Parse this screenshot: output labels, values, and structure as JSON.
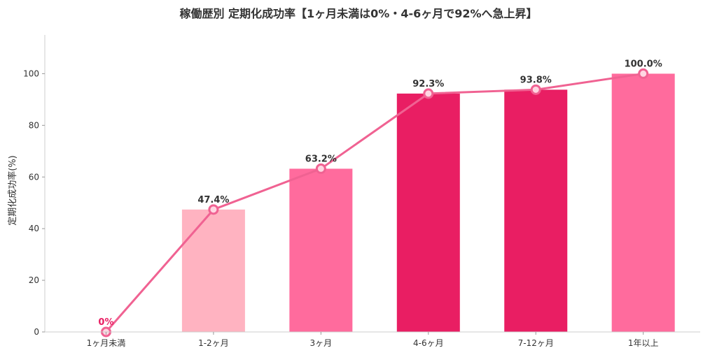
{
  "chart_data": {
    "type": "bar",
    "title": "稼働歴別 定期化成功率【1ヶ月未満は0%・4-6ヶ月で92%へ急上昇】",
    "xlabel": "",
    "ylabel": "定期化成功率(%)",
    "categories": [
      "1ヶ月未満",
      "1-2ヶ月",
      "3ヶ月",
      "4-6ヶ月",
      "7-12ヶ月",
      "1年以上"
    ],
    "values": [
      0,
      47.4,
      63.2,
      92.3,
      93.8,
      100.0
    ],
    "value_labels": [
      "0%",
      "47.4%",
      "63.2%",
      "92.3%",
      "93.8%",
      "100.0%"
    ],
    "bar_colors": [
      "#FFB3C1",
      "#FFB3C1",
      "#FF6B9D",
      "#E91E63",
      "#E91E63",
      "#FF6B9D"
    ],
    "line_overlay": {
      "values": [
        0,
        47.4,
        63.2,
        92.3,
        93.8,
        100.0
      ],
      "color": "#F06292"
    },
    "highlight_label_color": "#E91E63",
    "ylim": [
      0,
      115
    ],
    "yticks": [
      0,
      20,
      40,
      60,
      80,
      100
    ],
    "grid": false,
    "legend": "none"
  }
}
